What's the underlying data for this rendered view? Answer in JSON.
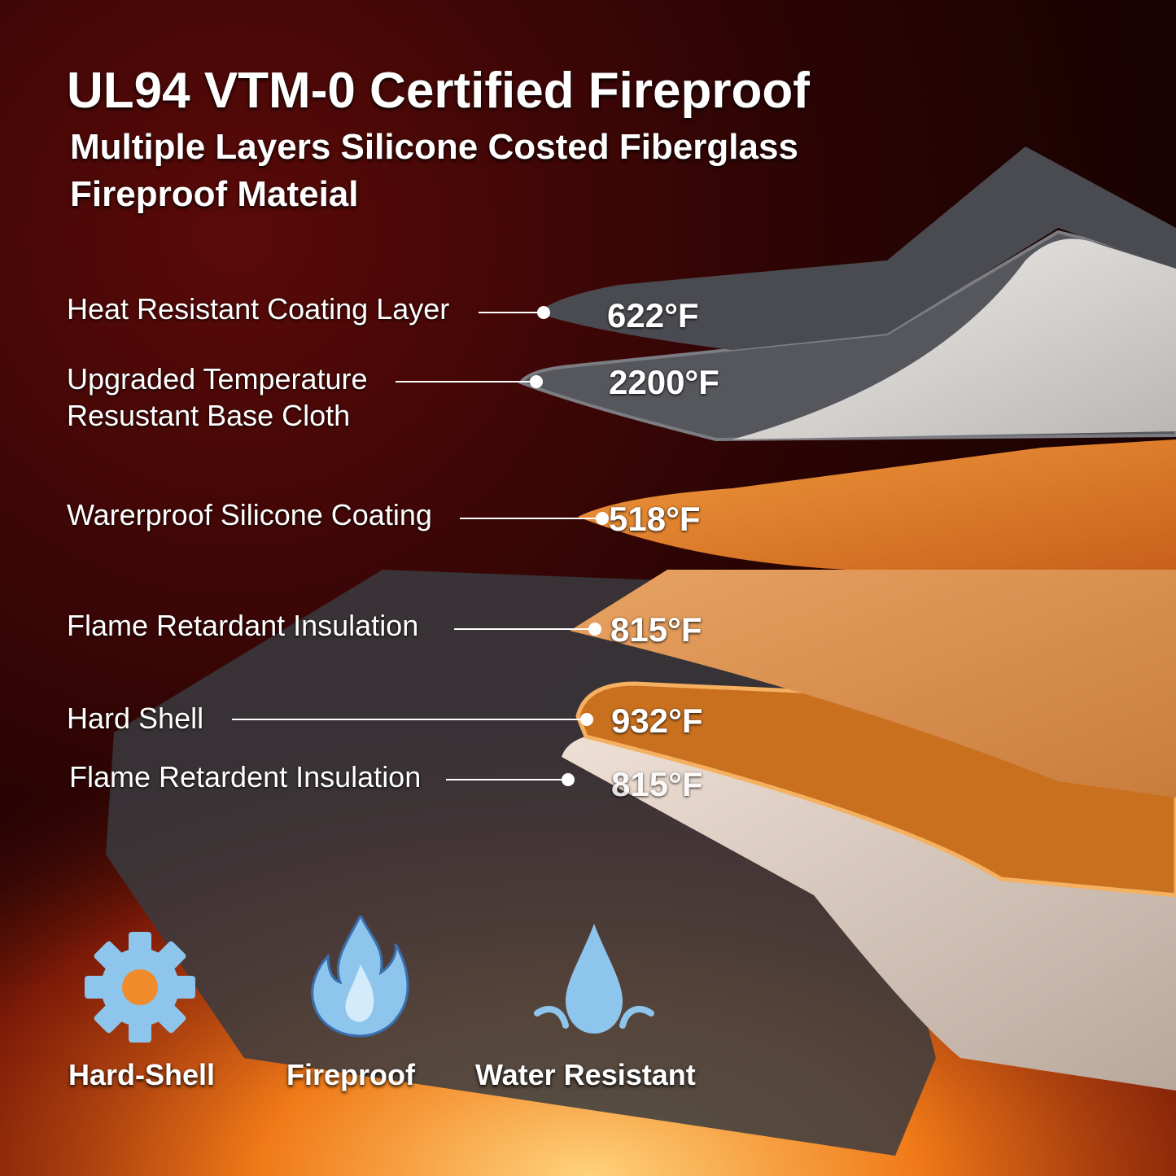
{
  "header": {
    "title": "UL94 VTM-0 Certified Fireproof",
    "subtitle_line1": "Multiple Layers Silicone Costed Fiberglass",
    "subtitle_line2": "Fireproof Mateial"
  },
  "layers": [
    {
      "label": "Heat Resistant Coating Layer",
      "temperature": "622°F"
    },
    {
      "label_line1": "Upgraded Temperature",
      "label_line2": "Resustant Base Cloth",
      "temperature": "2200°F"
    },
    {
      "label": "Warerproof Silicone Coating",
      "temperature": "518°F"
    },
    {
      "label": "Flame Retardant Insulation",
      "temperature": "815°F"
    },
    {
      "label": "Hard Shell",
      "temperature": "932°F"
    },
    {
      "label": "Flame Retardent Insulation",
      "temperature": "815°F"
    }
  ],
  "features": [
    {
      "icon": "gear-icon",
      "label": "Hard-Shell"
    },
    {
      "icon": "flame-icon",
      "label": "Fireproof"
    },
    {
      "icon": "water-drop-icon",
      "label": "Water Resistant"
    }
  ],
  "colors": {
    "icon_blue": "#8ec5ec",
    "layer_gray": "#55575c",
    "layer_orange": "#e8852e"
  }
}
